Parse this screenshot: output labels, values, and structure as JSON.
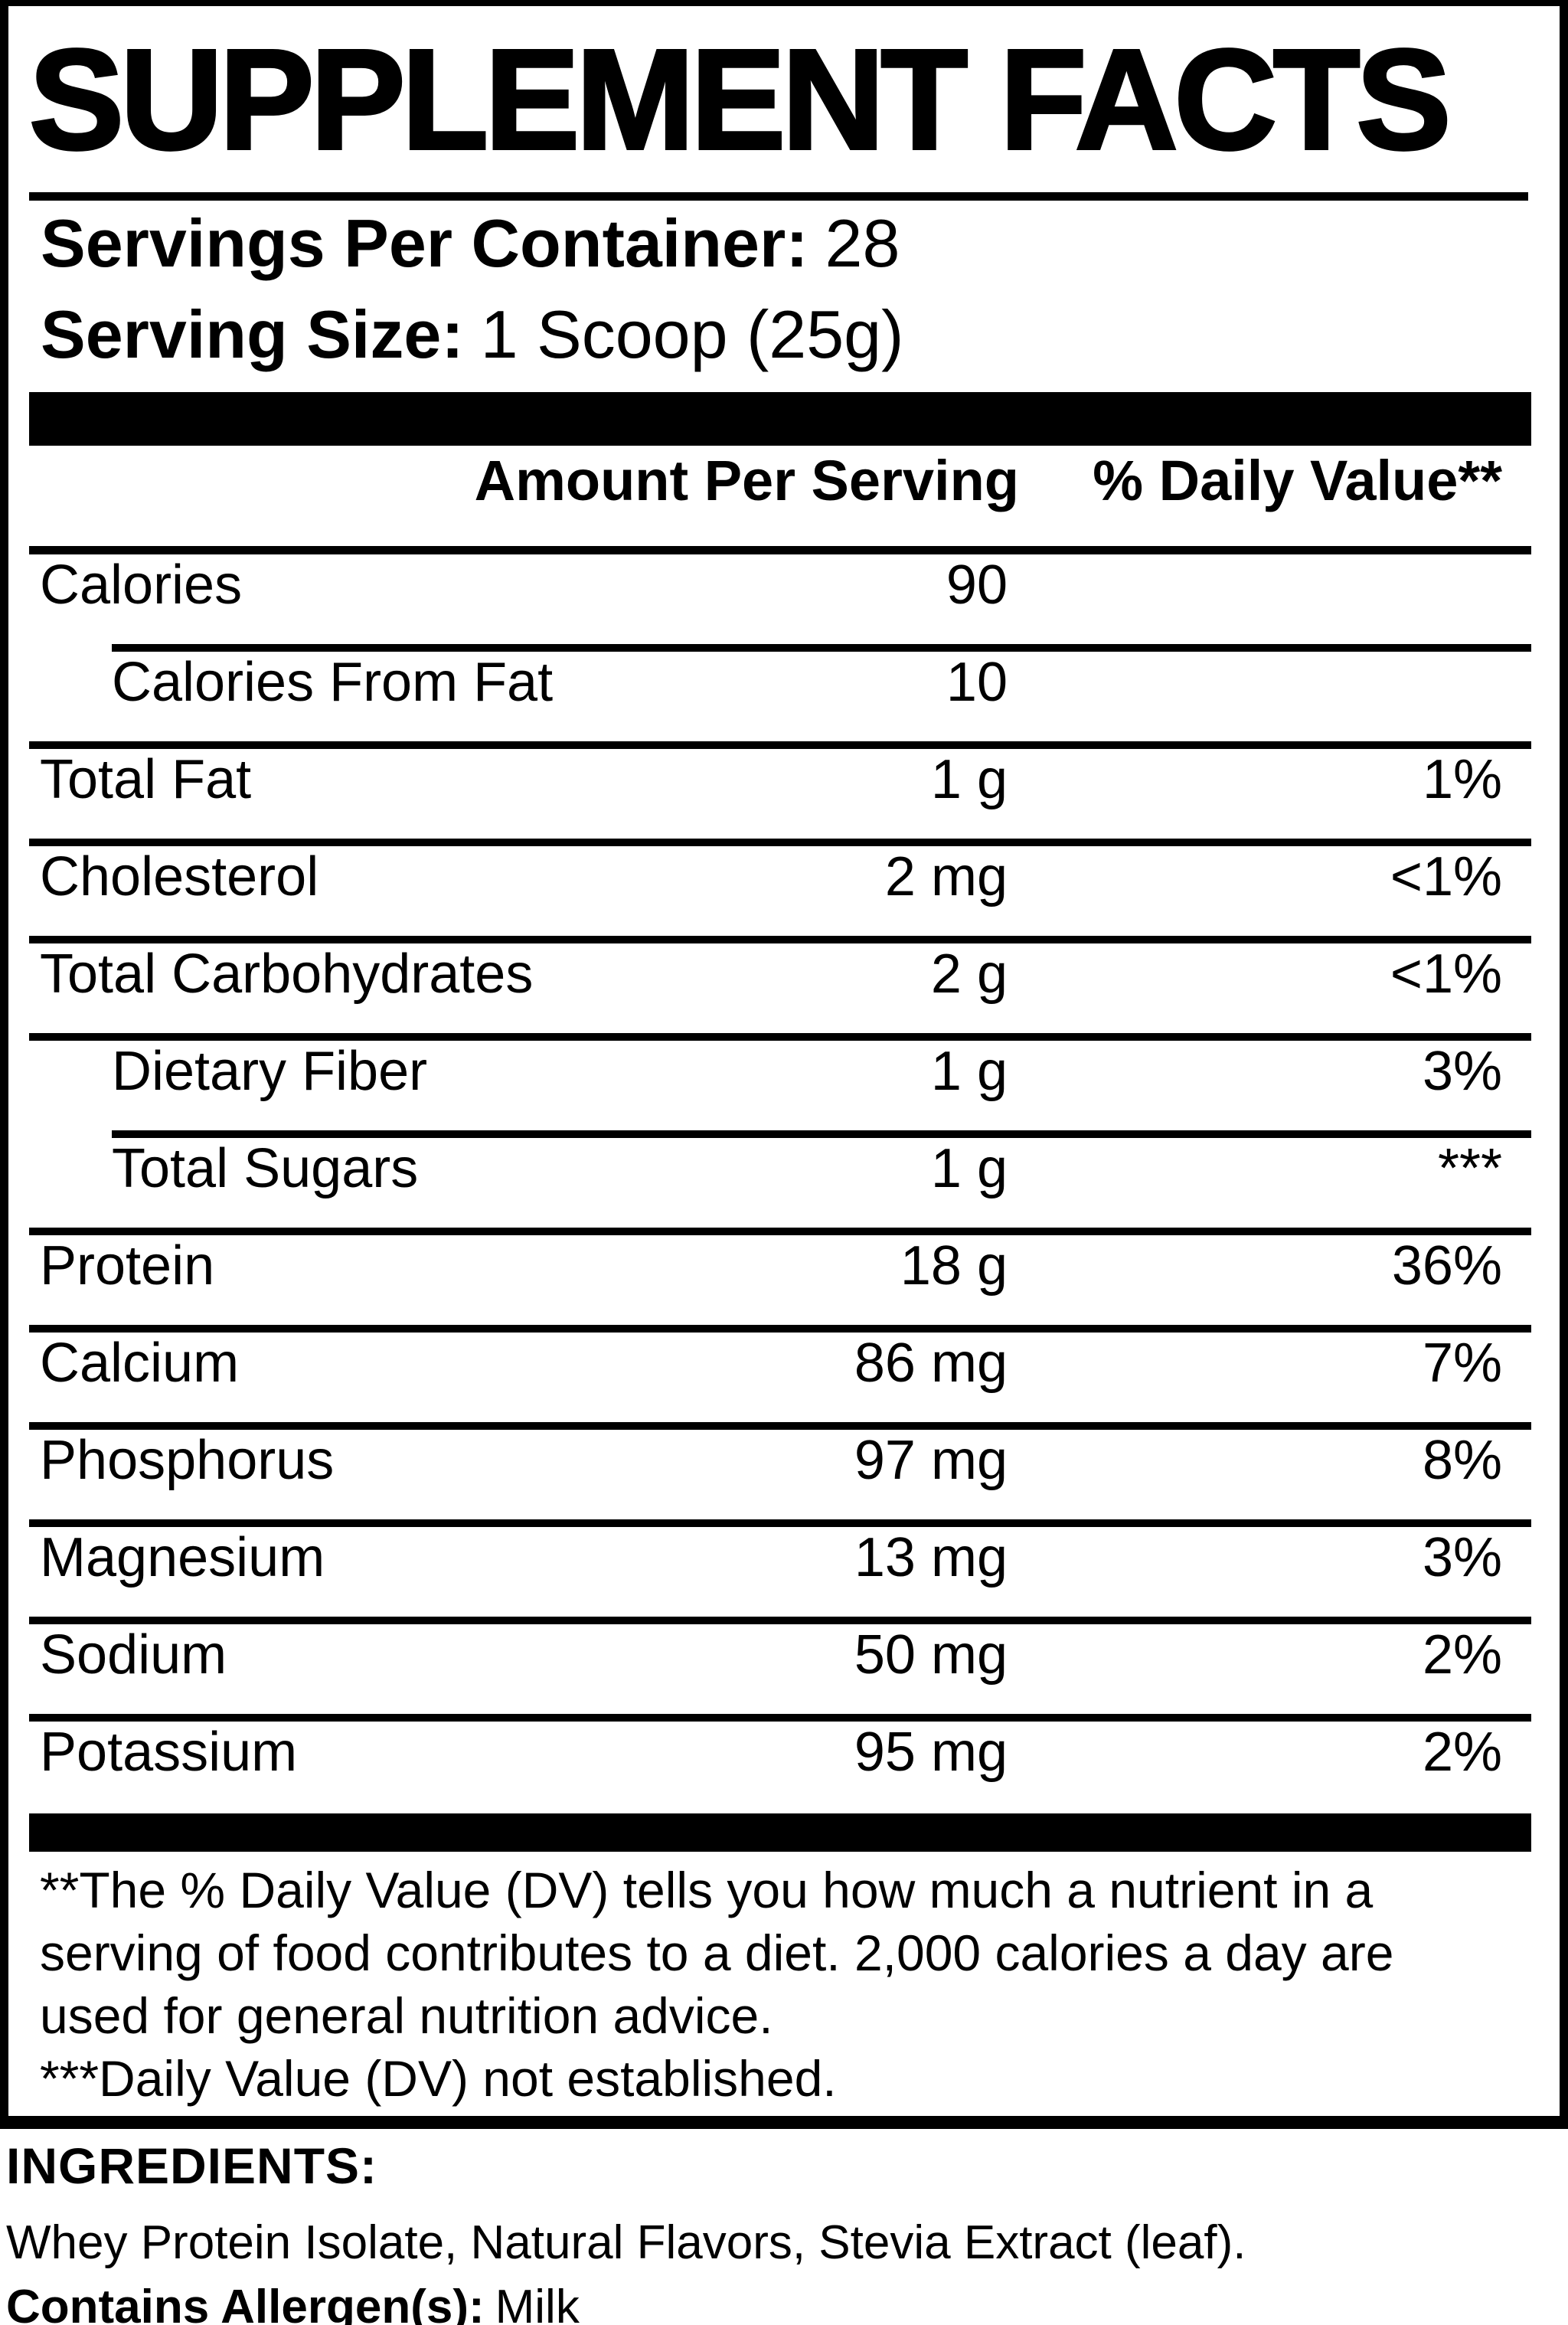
{
  "title": "SUPPLEMENT FACTS",
  "serving_info": {
    "servings_per_container_label": "Servings Per Container:",
    "servings_per_container_value": "28",
    "serving_size_label": "Serving Size:",
    "serving_size_value": "1 Scoop (25g)"
  },
  "table": {
    "header": {
      "amount": "Amount Per Serving",
      "daily_value": "% Daily Value**"
    },
    "rows": [
      {
        "label": "Calories",
        "amount": "90",
        "daily_value": "",
        "indent": false
      },
      {
        "label": "Calories From Fat",
        "amount": "10",
        "daily_value": "",
        "indent": true
      },
      {
        "label": "Total Fat",
        "amount": "1 g",
        "daily_value": "1%",
        "indent": false
      },
      {
        "label": "Cholesterol",
        "amount": "2 mg",
        "daily_value": "<1%",
        "indent": false
      },
      {
        "label": "Total Carbohydrates",
        "amount": "2 g",
        "daily_value": "<1%",
        "indent": false
      },
      {
        "label": "Dietary Fiber",
        "amount": "1 g",
        "daily_value": "3%",
        "indent": true
      },
      {
        "label": "Total Sugars",
        "amount": "1 g",
        "daily_value": "***",
        "indent": true
      },
      {
        "label": "Protein",
        "amount": "18 g",
        "daily_value": "36%",
        "indent": false
      },
      {
        "label": "Calcium",
        "amount": "86 mg",
        "daily_value": "7%",
        "indent": false
      },
      {
        "label": "Phosphorus",
        "amount": "97 mg",
        "daily_value": "8%",
        "indent": false
      },
      {
        "label": "Magnesium",
        "amount": "13 mg",
        "daily_value": "3%",
        "indent": false
      },
      {
        "label": "Sodium",
        "amount": "50 mg",
        "daily_value": "2%",
        "indent": false
      },
      {
        "label": "Potassium",
        "amount": "95 mg",
        "daily_value": "2%",
        "indent": false
      }
    ]
  },
  "footnotes": {
    "lines": [
      "**The % Daily Value (DV) tells you how much a nutrient in a",
      "serving of food contributes to a diet. 2,000 calories a day are",
      "used for general nutrition advice.",
      "***Daily Value (DV) not established."
    ]
  },
  "ingredients": {
    "heading": "INGREDIENTS:",
    "list": "Whey Protein Isolate, Natural Flavors, Stevia Extract (leaf).",
    "allergen_label": "Contains Allergen(s):",
    "allergen_value": "Milk"
  },
  "colors": {
    "ink": "#000000",
    "background": "#ffffff"
  }
}
